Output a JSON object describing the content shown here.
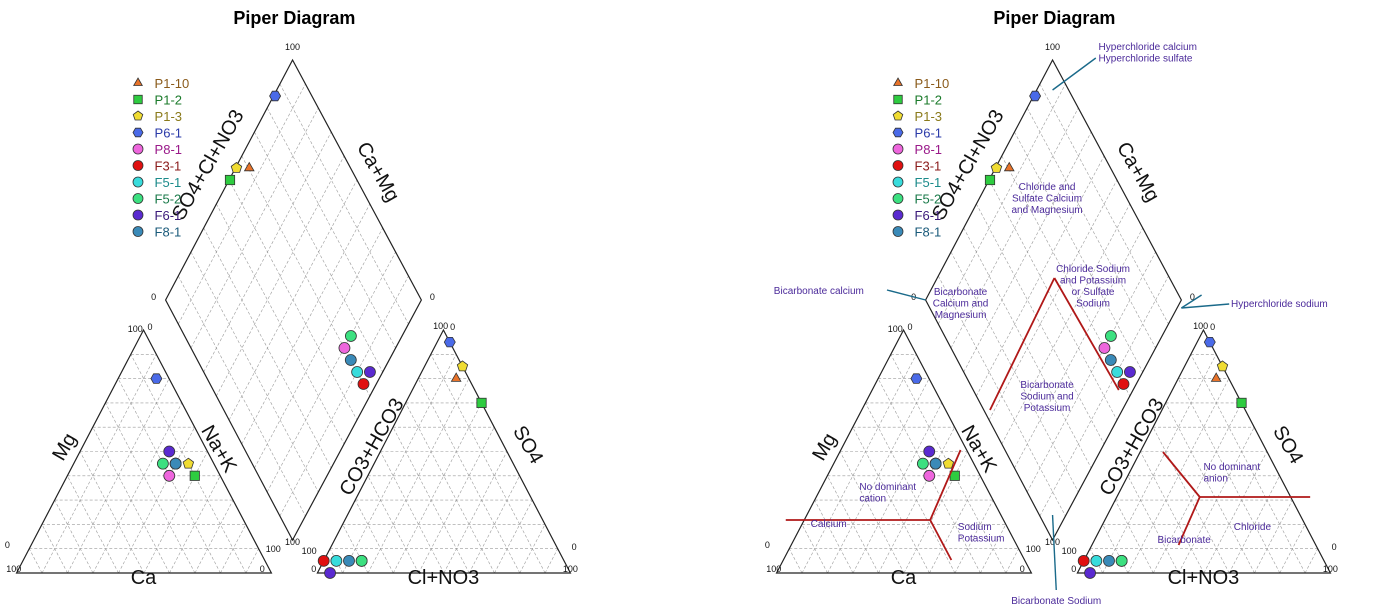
{
  "colors": {
    "zone_line": "#b01818",
    "zone_text": "#4b2a9a",
    "callout_line": "#1a6a8a",
    "grid": "#9a9a9a"
  },
  "chart_data": [
    {
      "type": "scatter",
      "subtype": "piper",
      "title": "Piper Diagram",
      "axis_labels": {
        "cation_left": "Mg",
        "cation_right": "Na+K",
        "cation_bottom": "Ca",
        "anion_left": "CO3+HCO3",
        "anion_right": "SO4",
        "anion_bottom": "Cl+NO3",
        "diamond_left": "SO4+Cl+NO3",
        "diamond_right": "Ca+Mg"
      },
      "tick_labels": {
        "cat_bottom_left": "100",
        "cat_bottom_right": "0",
        "cat_left_bottom": "0",
        "cat_top_left": "100",
        "cat_top_right": "0",
        "cat_right_bottom": "100",
        "an_bottom_left": "0",
        "an_bottom_right": "100",
        "an_left_bottom": "100",
        "an_top_left": "100",
        "an_top_right": "0",
        "an_right_bottom": "0",
        "dia_top": "100",
        "dia_left": "0",
        "dia_right": "0",
        "dia_bottom": "100"
      },
      "legend_position": "top-left",
      "series": [
        {
          "name": "P1-10",
          "marker": "triangle",
          "color": "#e8732a",
          "text_color": "#8a5a1a",
          "cation": [
            15,
            45,
            40
          ],
          "anion": [
            5,
            80,
            15
          ]
        },
        {
          "name": "P1-2",
          "marker": "square",
          "color": "#2ecc40",
          "text_color": "#1a7a2a",
          "cation": [
            10,
            40,
            50
          ],
          "anion": [
            0,
            70,
            30
          ]
        },
        {
          "name": "P1-3",
          "marker": "pentagon",
          "color": "#f0dc32",
          "text_color": "#8a7a1a",
          "cation": [
            10,
            45,
            45
          ],
          "anion": [
            0,
            85,
            15
          ]
        },
        {
          "name": "P6-1",
          "marker": "hexagon",
          "color": "#4a6ae8",
          "text_color": "#2a3aa8",
          "cation": [
            5,
            80,
            15
          ],
          "anion": [
            0,
            95,
            5
          ]
        },
        {
          "name": "P8-1",
          "marker": "circle",
          "color": "#ee66dd",
          "text_color": "#9a1a8a",
          "cation": [
            20,
            40,
            40
          ],
          "anion": [
            80,
            5,
            15
          ]
        },
        {
          "name": "F3-1",
          "marker": "circle",
          "color": "#e01010",
          "text_color": "#8a1a1a",
          "cation": [
            15,
            45,
            40
          ],
          "anion": [
            95,
            5,
            0
          ]
        },
        {
          "name": "F5-1",
          "marker": "circle",
          "color": "#38dcdc",
          "text_color": "#1a8a8a",
          "cation": [
            15,
            45,
            40
          ],
          "anion": [
            90,
            5,
            5
          ]
        },
        {
          "name": "F5-2",
          "marker": "circle",
          "color": "#3ce080",
          "text_color": "#1a7a4a",
          "cation": [
            20,
            45,
            35
          ],
          "anion": [
            80,
            5,
            15
          ]
        },
        {
          "name": "F6-1",
          "marker": "circle",
          "color": "#5a2ad0",
          "text_color": "#3a1a7a",
          "cation": [
            15,
            50,
            35
          ],
          "anion": [
            95,
            0,
            5
          ]
        },
        {
          "name": "F8-1",
          "marker": "circle",
          "color": "#3a8ab8",
          "text_color": "#1a5a7a",
          "cation": [
            15,
            45,
            40
          ],
          "anion": [
            85,
            5,
            10
          ]
        }
      ]
    },
    {
      "type": "scatter",
      "subtype": "piper",
      "title": "Piper Diagram",
      "axis_labels": {
        "cation_left": "Mg",
        "cation_right": "Na+K",
        "cation_bottom": "Ca",
        "anion_left": "CO3+HCO3",
        "anion_right": "SO4",
        "anion_bottom": "Cl+NO3",
        "diamond_left": "SO4+Cl+NO3",
        "diamond_right": "Ca+Mg"
      },
      "tick_labels": {
        "cat_bottom_left": "100",
        "cat_bottom_right": "0",
        "cat_left_bottom": "0",
        "cat_top_left": "100",
        "cat_top_right": "0",
        "cat_right_bottom": "100",
        "an_bottom_left": "0",
        "an_bottom_right": "100",
        "an_left_bottom": "100",
        "an_top_left": "100",
        "an_top_right": "0",
        "an_right_bottom": "0",
        "dia_top": "100",
        "dia_left": "0",
        "dia_right": "0",
        "dia_bottom": "100"
      },
      "legend_position": "top-left",
      "zones": {
        "diamond": [
          "Chloride and\nSulfate Calcium\nand Magnesium",
          "Bicarbonate\nCalcium and\nMagnesium",
          "Chloride  Sodium\nand     Potassium\nor        Sulfate\nSodium",
          "Bicarbonate\nSodium and\nPotassium"
        ],
        "cation": [
          "Calcium",
          "No      dominant\ncation",
          "Sodium\nPotassium"
        ],
        "anion": [
          "Bicarbonate",
          "No      dominant\nanion",
          "Chloride"
        ]
      },
      "callouts": [
        "Hyperchloride calcium\nHyperchloride sulfate",
        "Bicarbonate calcium",
        "Hyperchloride sodium",
        "Bicarbonate Sodium"
      ],
      "series_ref": "same as first chart"
    }
  ]
}
